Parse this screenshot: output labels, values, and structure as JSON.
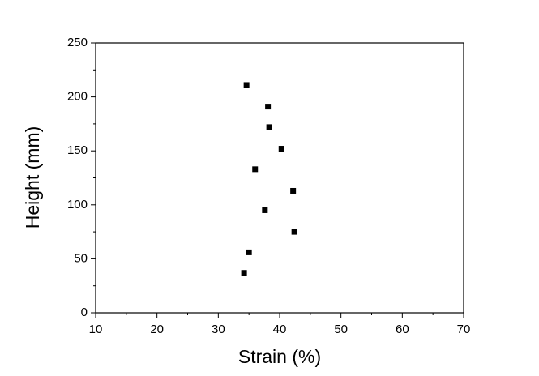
{
  "chart_data": {
    "type": "scatter",
    "x_label": "Strain (%)",
    "y_label": "Height (mm)",
    "series": [
      {
        "color": "#000000",
        "x": [
          34.6,
          38.1,
          38.3,
          40.3,
          36.0,
          42.2,
          37.6,
          42.4,
          35.0,
          34.2
        ],
        "values": [
          211,
          191,
          172,
          152,
          133,
          113,
          95,
          75,
          56,
          37
        ]
      }
    ],
    "xlim": [
      10,
      70
    ],
    "xticks": [
      10,
      20,
      30,
      40,
      50,
      60,
      70
    ],
    "ylim": [
      0,
      250
    ],
    "yticks": [
      0,
      50,
      100,
      150,
      200,
      250
    ]
  }
}
